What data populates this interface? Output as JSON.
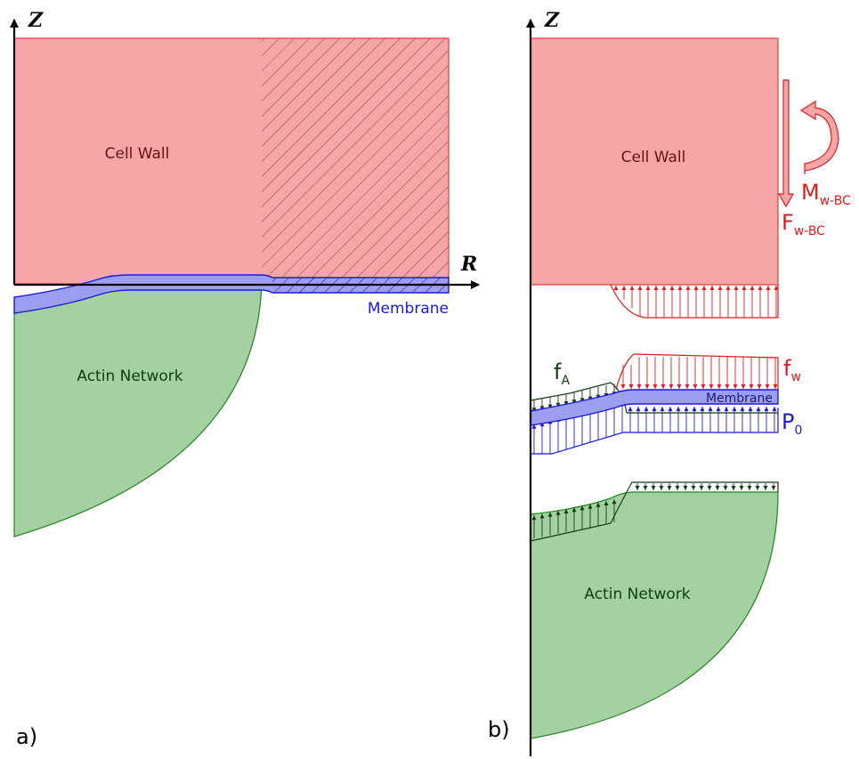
{
  "panel_a": {
    "tag": "a)",
    "axis_z": "Z",
    "axis_r": "R",
    "cell_wall": "Cell Wall",
    "membrane": "Membrane",
    "actin": "Actin Network"
  },
  "panel_b": {
    "tag": "b)",
    "axis_z": "Z",
    "cell_wall": "Cell Wall",
    "membrane": "Membrane",
    "actin": "Actin Network",
    "moment": {
      "main": "M",
      "sub": "w-BC"
    },
    "force": {
      "main": "F",
      "sub": "w-BC"
    },
    "fw": {
      "main": "f",
      "sub": "w"
    },
    "fa": {
      "main": "f",
      "sub": "A"
    },
    "p0": {
      "main": "P",
      "sub": "0"
    }
  },
  "colors": {
    "wall_fill": "#f6a6a6",
    "wall_stroke": "#e8393c",
    "wall_text": "#6b1212",
    "membrane_fill": "#9d9df2",
    "membrane_stroke": "#1a1ae0",
    "actin_fill": "#a5d1a2",
    "actin_stroke": "#1a8a1a",
    "actin_text": "#0f3d12",
    "load_red": "#e31a1c",
    "load_blue": "#1a1ae0",
    "load_green": "#123d12"
  }
}
